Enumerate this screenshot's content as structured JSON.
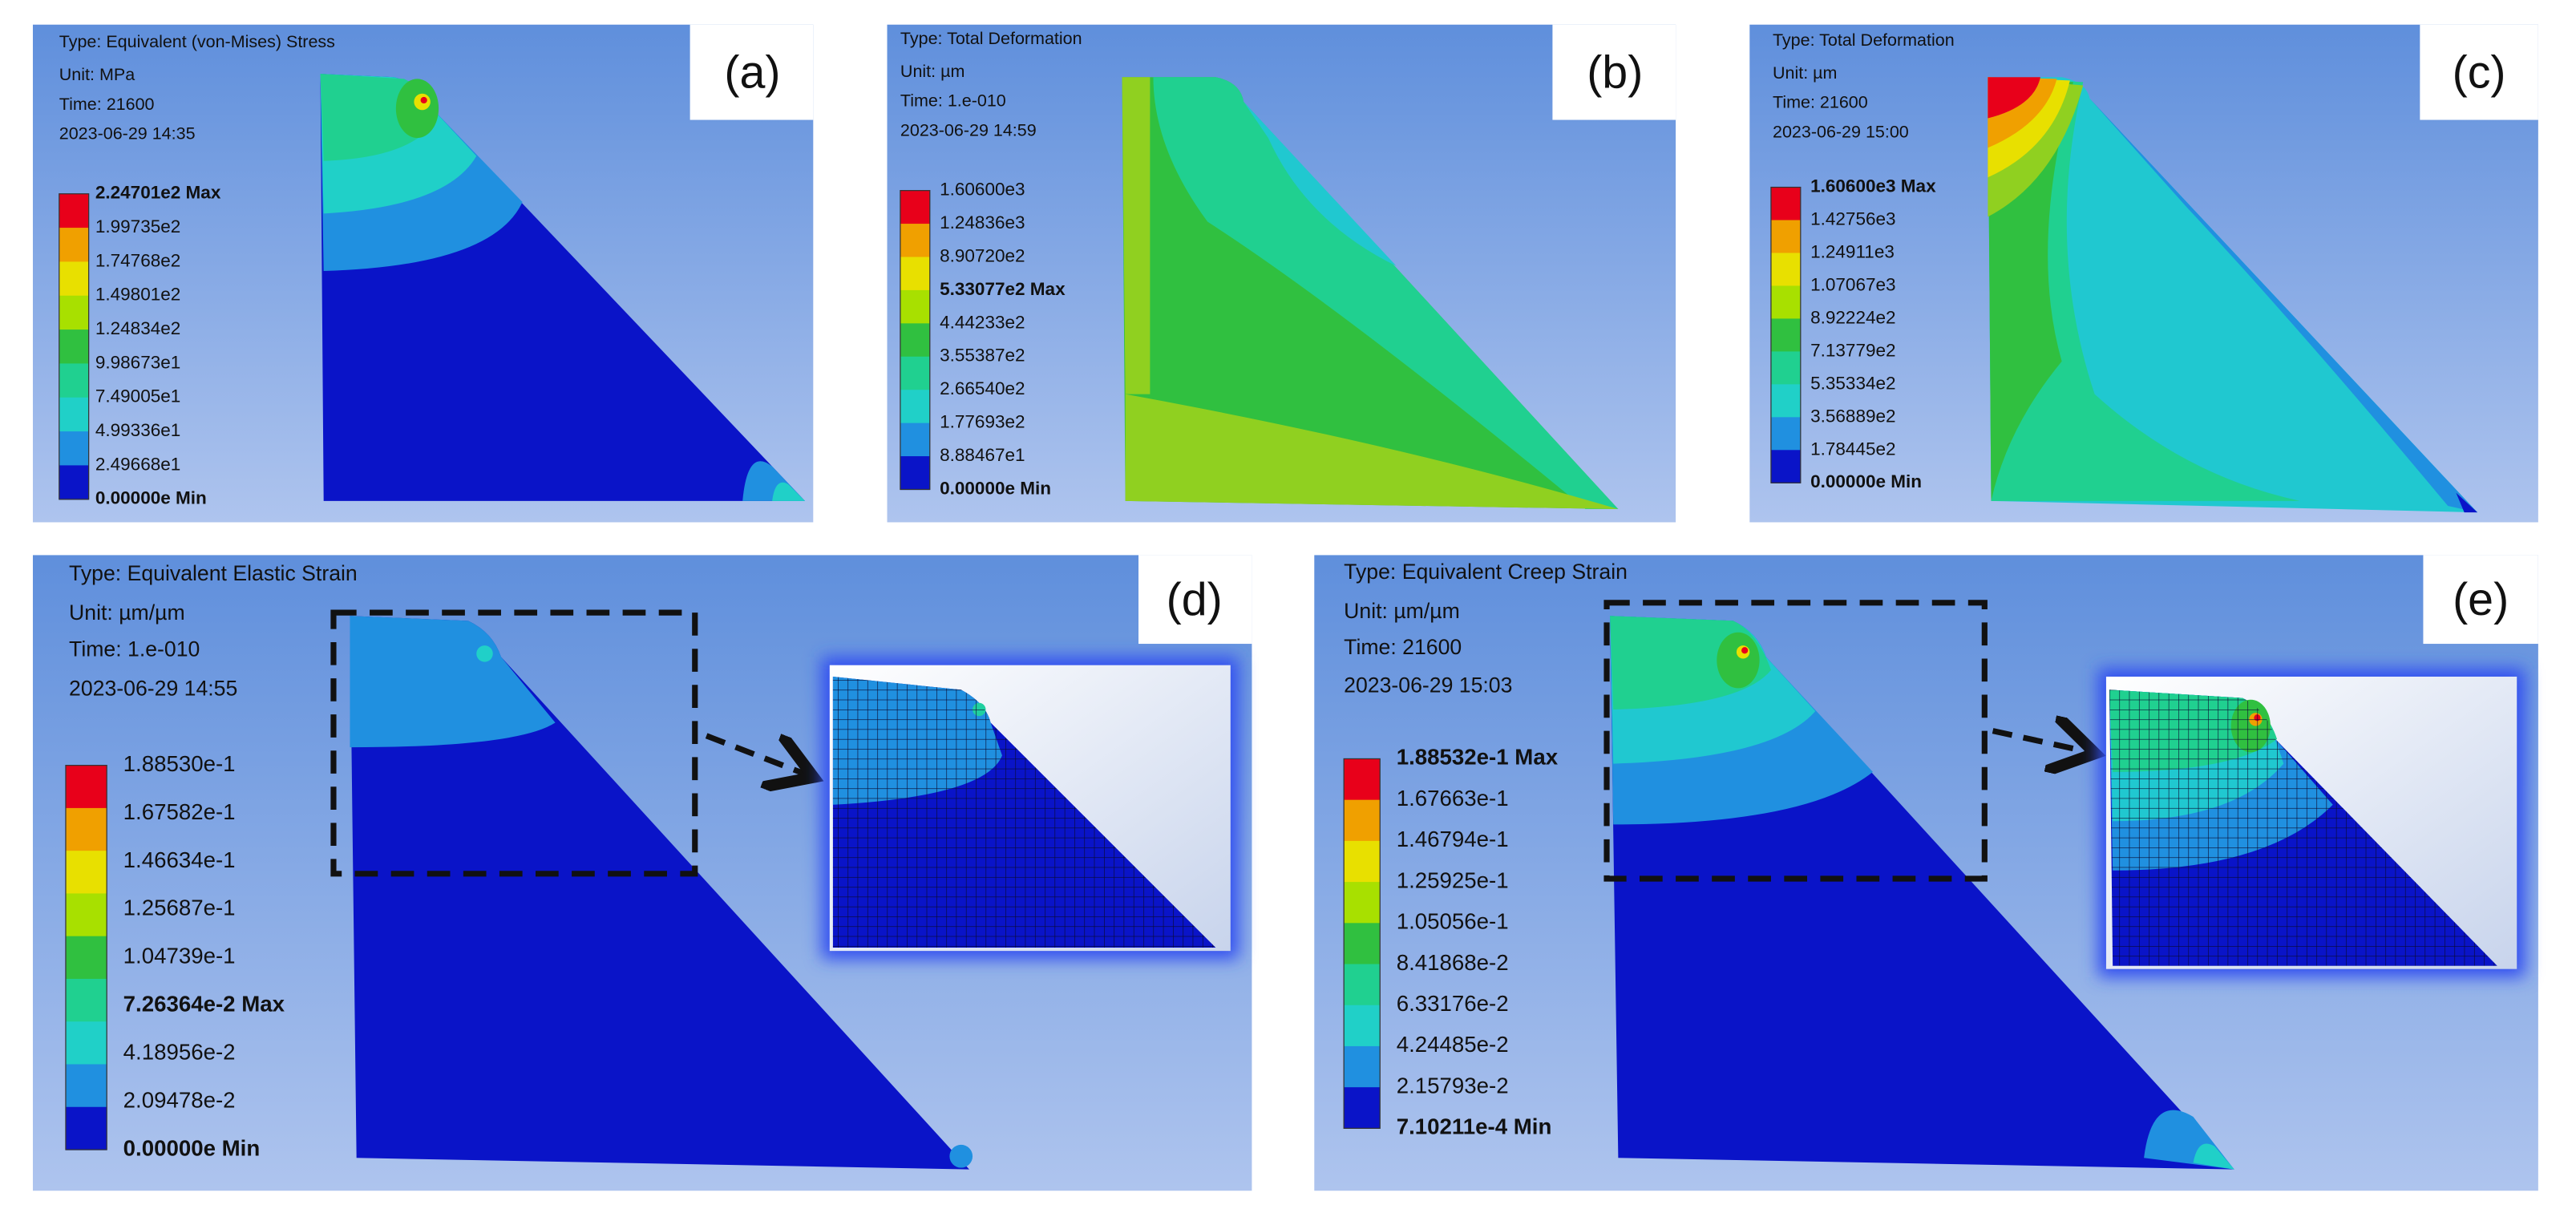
{
  "panels": [
    {
      "label": "(a)",
      "info": [
        "Type: Equivalent (von-Mises) Stress",
        "Unit: MPa",
        "Time: 21600",
        "2023-06-29 14:35"
      ],
      "legend": [
        {
          "text": "2.24701e2 Max",
          "bold": true
        },
        {
          "text": "1.99735e2"
        },
        {
          "text": "1.74768e2"
        },
        {
          "text": "1.49801e2"
        },
        {
          "text": "1.24834e2"
        },
        {
          "text": "9.98673e1"
        },
        {
          "text": "7.49005e1"
        },
        {
          "text": "4.99336e1"
        },
        {
          "text": "2.49668e1"
        },
        {
          "text": "0.00000e Min",
          "bold": true
        }
      ]
    },
    {
      "label": "(b)",
      "info": [
        "Type: Total Deformation",
        "Unit: µm",
        "Time: 1.e-010",
        "2023-06-29 14:59"
      ],
      "legend": [
        {
          "text": "1.60600e3"
        },
        {
          "text": "1.24836e3"
        },
        {
          "text": "8.90720e2"
        },
        {
          "text": "5.33077e2 Max",
          "bold": true
        },
        {
          "text": "4.44233e2"
        },
        {
          "text": "3.55387e2"
        },
        {
          "text": "2.66540e2"
        },
        {
          "text": "1.77693e2"
        },
        {
          "text": "8.88467e1"
        },
        {
          "text": "0.00000e Min",
          "bold": true
        }
      ]
    },
    {
      "label": "(c)",
      "info": [
        "Type: Total Deformation",
        "Unit: µm",
        "Time: 21600",
        "2023-06-29 15:00"
      ],
      "legend": [
        {
          "text": "1.60600e3 Max",
          "bold": true
        },
        {
          "text": "1.42756e3"
        },
        {
          "text": "1.24911e3"
        },
        {
          "text": "1.07067e3"
        },
        {
          "text": "8.92224e2"
        },
        {
          "text": "7.13779e2"
        },
        {
          "text": "5.35334e2"
        },
        {
          "text": "3.56889e2"
        },
        {
          "text": "1.78445e2"
        },
        {
          "text": "0.00000e Min",
          "bold": true
        }
      ]
    },
    {
      "label": "(d)",
      "info": [
        "Type: Equivalent Elastic Strain",
        "Unit: µm/µm",
        "Time: 1.e-010",
        "2023-06-29 14:55"
      ],
      "legend": [
        {
          "text": "1.88530e-1"
        },
        {
          "text": "1.67582e-1"
        },
        {
          "text": "1.46634e-1"
        },
        {
          "text": "1.25687e-1"
        },
        {
          "text": "1.04739e-1"
        },
        {
          "text": "7.26364e-2 Max",
          "bold": true
        },
        {
          "text": "4.18956e-2"
        },
        {
          "text": "2.09478e-2"
        },
        {
          "text": "0.00000e Min",
          "bold": true
        }
      ]
    },
    {
      "label": "(e)",
      "info": [
        "Type: Equivalent Creep Strain",
        "Unit: µm/µm",
        "Time: 21600",
        "2023-06-29 15:03"
      ],
      "legend": [
        {
          "text": "1.88532e-1 Max",
          "bold": true
        },
        {
          "text": "1.67663e-1"
        },
        {
          "text": "1.46794e-1"
        },
        {
          "text": "1.25925e-1"
        },
        {
          "text": "1.05056e-1"
        },
        {
          "text": "8.41868e-2"
        },
        {
          "text": "6.33176e-2"
        },
        {
          "text": "4.24485e-2"
        },
        {
          "text": "2.15793e-2"
        },
        {
          "text": "7.10211e-4 Min",
          "bold": true
        }
      ]
    }
  ]
}
